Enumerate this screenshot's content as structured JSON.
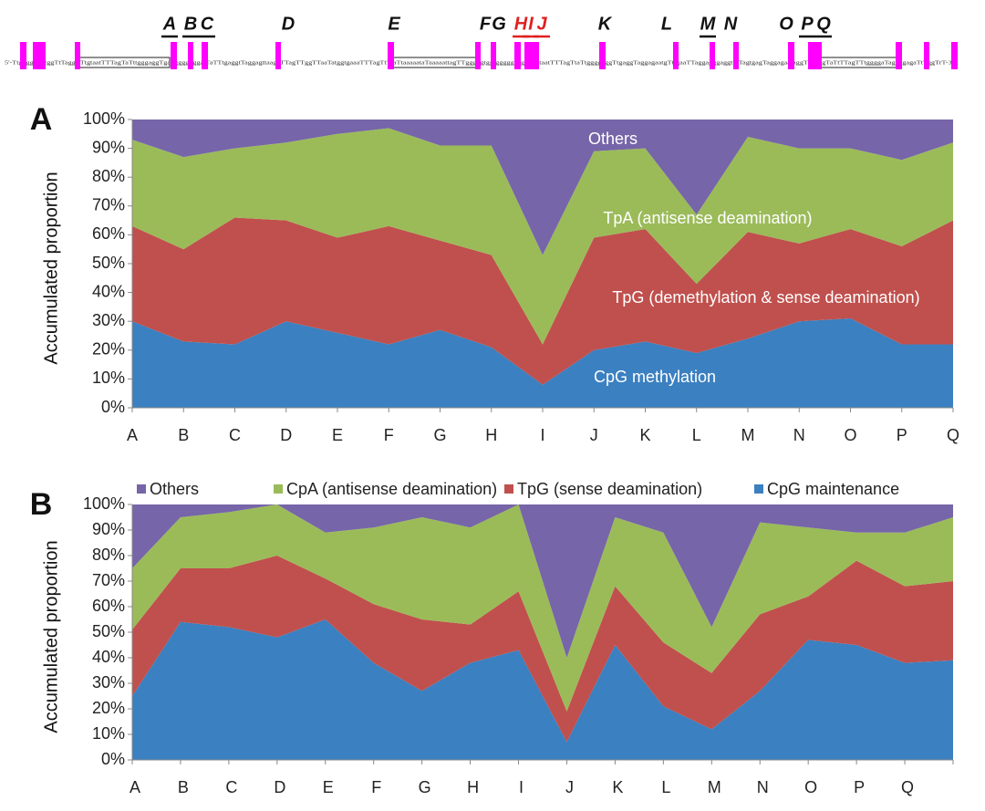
{
  "sequence_map": {
    "letters": [
      {
        "text": "A",
        "color": "#111111",
        "underline": true
      },
      {
        "text": "B",
        "color": "#111111",
        "underline": true
      },
      {
        "text": "C",
        "color": "#111111",
        "underline": true
      },
      {
        "text": "D",
        "color": "#111111",
        "underline": false
      },
      {
        "text": "E",
        "color": "#111111",
        "underline": false
      },
      {
        "text": "F",
        "color": "#111111",
        "underline": false
      },
      {
        "text": "G",
        "color": "#111111",
        "underline": false
      },
      {
        "text": "H",
        "color": "#e02020",
        "underline": true
      },
      {
        "text": "I",
        "color": "#e02020",
        "underline": true
      },
      {
        "text": "J",
        "color": "#e02020",
        "underline": true
      },
      {
        "text": "K",
        "color": "#111111",
        "underline": false
      },
      {
        "text": "L",
        "color": "#111111",
        "underline": false
      },
      {
        "text": "M",
        "color": "#111111",
        "underline": true
      },
      {
        "text": "N",
        "color": "#111111",
        "underline": false
      },
      {
        "text": "O",
        "color": "#111111",
        "underline": false
      },
      {
        "text": "P",
        "color": "#111111",
        "underline": true
      },
      {
        "text": "Q",
        "color": "#111111",
        "underline": true
      }
    ],
    "sequence": "5'-TtgggggggtggTtTaggTTtgtaatTTTagTaTttgggaggTgaggggggggatTaTTtgaggtTaggagttaagaTTagTTggTTaaTatggtgaaaTTTagTtTtaTtaaaaataTaaaaattagTTgggggtggtgggggaagTTtgtaatTTTagTtaTtggggaggTtgaggTaggagaatgTttgaaTTaggagggaggttgTagtgagTaggagaataggTTaTtgTaTtTTagTTtggggaTagaggagaTtTggTrT-3'",
    "highlight_color": "#ff00ff"
  },
  "chart_data": [
    {
      "type": "stacked_area",
      "panel": "A",
      "ylabel": "Accumulated proportion",
      "categories": [
        "A",
        "B",
        "C",
        "D",
        "E",
        "F",
        "G",
        "H",
        "I",
        "J",
        "K",
        "L",
        "M",
        "N",
        "O",
        "P",
        "Q"
      ],
      "ylim": [
        0,
        100
      ],
      "yticks": [
        {
          "value": 0,
          "label": "0%"
        },
        {
          "value": 10,
          "label": "10%"
        },
        {
          "value": 20,
          "label": "20%"
        },
        {
          "value": 30,
          "label": "30%"
        },
        {
          "value": 40,
          "label": "40%"
        },
        {
          "value": 50,
          "label": "50%"
        },
        {
          "value": 60,
          "label": "60%"
        },
        {
          "value": 70,
          "label": "70%"
        },
        {
          "value": 80,
          "label": "80%"
        },
        {
          "value": 90,
          "label": "90%"
        },
        {
          "value": 100,
          "label": "100%"
        }
      ],
      "grid": false,
      "legend": "inline",
      "series": [
        {
          "name": "CpG methylation",
          "color": "#3b80c0",
          "values": [
            30,
            23,
            22,
            30,
            26,
            22,
            27,
            21,
            8,
            20,
            23,
            19,
            24,
            30,
            31,
            22,
            22
          ]
        },
        {
          "name": "TpG (demethylation & sense deamination)",
          "color": "#c0504d",
          "values": [
            33,
            32,
            44,
            35,
            33,
            41,
            31,
            32,
            14,
            39,
            39,
            24,
            37,
            27,
            31,
            34,
            43
          ]
        },
        {
          "name": "TpA (antisense deamination)",
          "color": "#9bbb59",
          "values": [
            30,
            32,
            24,
            27,
            36,
            34,
            33,
            38,
            31,
            30,
            28,
            24,
            33,
            33,
            28,
            30,
            27
          ]
        },
        {
          "name": "Others",
          "color": "#7665a8",
          "values": [
            7,
            13,
            10,
            8,
            5,
            3,
            9,
            9,
            47,
            11,
            10,
            33,
            6,
            10,
            10,
            14,
            8
          ]
        }
      ]
    },
    {
      "type": "stacked_area",
      "panel": "B",
      "ylabel": "Accumulated proportion",
      "categories": [
        "A",
        "B",
        "C",
        "D",
        "E",
        "F",
        "G",
        "H",
        "I",
        "J",
        "K",
        "L",
        "M",
        "N",
        "O",
        "P",
        "Q",
        null
      ],
      "ylim": [
        0,
        100
      ],
      "yticks": [
        {
          "value": 0,
          "label": "0%"
        },
        {
          "value": 10,
          "label": "10%"
        },
        {
          "value": 20,
          "label": "20%"
        },
        {
          "value": 30,
          "label": "30%"
        },
        {
          "value": 40,
          "label": "40%"
        },
        {
          "value": 50,
          "label": "50%"
        },
        {
          "value": 60,
          "label": "60%"
        },
        {
          "value": 70,
          "label": "70%"
        },
        {
          "value": 80,
          "label": "80%"
        },
        {
          "value": 90,
          "label": "90%"
        },
        {
          "value": 100,
          "label": "100%"
        }
      ],
      "grid": false,
      "legend": "top",
      "series": [
        {
          "name": "CpG maintenance",
          "color": "#3b80c0",
          "values": [
            25,
            54,
            52,
            48,
            55,
            38,
            27,
            38,
            43,
            7,
            45,
            21,
            12,
            27,
            47,
            45,
            38,
            39
          ]
        },
        {
          "name": "TpG (sense deamination)",
          "color": "#c0504d",
          "values": [
            26,
            21,
            23,
            32,
            16,
            23,
            28,
            15,
            23,
            12,
            23,
            25,
            22,
            30,
            17,
            33,
            30,
            31
          ]
        },
        {
          "name": "CpA (antisense deamination)",
          "color": "#9bbb59",
          "values": [
            24,
            20,
            22,
            20,
            18,
            30,
            40,
            38,
            34,
            21,
            27,
            43,
            18,
            36,
            27,
            11,
            21,
            25
          ]
        },
        {
          "name": "Others",
          "color": "#7665a8",
          "values": [
            25,
            5,
            3,
            0,
            11,
            9,
            5,
            9,
            0,
            60,
            5,
            11,
            48,
            7,
            9,
            11,
            11,
            5
          ]
        }
      ]
    }
  ]
}
